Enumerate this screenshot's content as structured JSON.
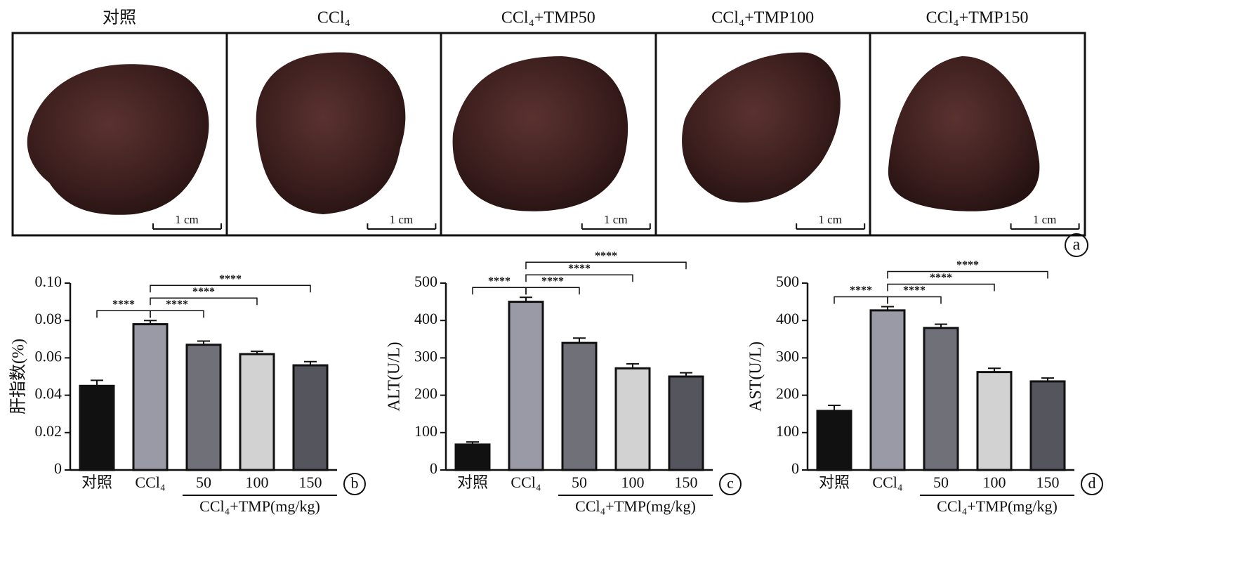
{
  "panel_a": {
    "titles": [
      "对照",
      "CCl₄",
      "CCl₄+TMP50",
      "CCl₄+TMP100",
      "CCl₄+TMP150"
    ],
    "scale_bars": [
      "1 cm",
      "1 cm",
      "1 cm",
      "1 cm",
      "1 cm"
    ],
    "label": "a"
  },
  "chart_data": [
    {
      "type": "bar",
      "panel_label": "b",
      "y_label": "肝指数(%)",
      "group_label": "CCl₄+TMP(mg/kg)",
      "categories": [
        "对照",
        "CCl₄",
        "50",
        "100",
        "150"
      ],
      "values": [
        0.045,
        0.078,
        0.067,
        0.062,
        0.056
      ],
      "errors": [
        0.003,
        0.002,
        0.002,
        0.0015,
        0.002
      ],
      "colors": [
        "#111111",
        "#9a9aa6",
        "#707079",
        "#d2d2d2",
        "#55555e"
      ],
      "ylim": [
        0,
        0.1
      ],
      "yticks": [
        0,
        0.02,
        0.04,
        0.06,
        0.08,
        {
          "value": 0.1,
          "label": "0.10"
        }
      ],
      "significance": [
        {
          "from": 0,
          "to": 1,
          "label": "****"
        },
        {
          "from": 1,
          "to": 2,
          "label": "****"
        },
        {
          "from": 1,
          "to": 3,
          "label": "****"
        },
        {
          "from": 1,
          "to": 4,
          "label": "****"
        }
      ]
    },
    {
      "type": "bar",
      "panel_label": "c",
      "y_label": "ALT(U/L)",
      "group_label": "CCl₄+TMP(mg/kg)",
      "categories": [
        "对照",
        "CCl₄",
        "50",
        "100",
        "150"
      ],
      "values": [
        68,
        450,
        340,
        272,
        250
      ],
      "errors": [
        7,
        12,
        13,
        12,
        10
      ],
      "colors": [
        "#111111",
        "#9a9aa6",
        "#707079",
        "#d2d2d2",
        "#55555e"
      ],
      "ylim": [
        0,
        500
      ],
      "yticks": [
        0,
        100,
        200,
        300,
        400,
        500
      ],
      "significance": [
        {
          "from": 0,
          "to": 1,
          "label": "****"
        },
        {
          "from": 1,
          "to": 2,
          "label": "****"
        },
        {
          "from": 1,
          "to": 3,
          "label": "****"
        },
        {
          "from": 1,
          "to": 4,
          "label": "****"
        }
      ]
    },
    {
      "type": "bar",
      "panel_label": "d",
      "y_label": "AST(U/L)",
      "group_label": "CCl₄+TMP(mg/kg)",
      "categories": [
        "对照",
        "CCl₄",
        "50",
        "100",
        "150"
      ],
      "values": [
        158,
        427,
        380,
        262,
        237
      ],
      "errors": [
        15,
        10,
        10,
        10,
        9
      ],
      "colors": [
        "#111111",
        "#9a9aa6",
        "#707079",
        "#d2d2d2",
        "#55555e"
      ],
      "ylim": [
        0,
        500
      ],
      "yticks": [
        0,
        100,
        200,
        300,
        400,
        500
      ],
      "significance": [
        {
          "from": 0,
          "to": 1,
          "label": "****"
        },
        {
          "from": 1,
          "to": 2,
          "label": "****"
        },
        {
          "from": 1,
          "to": 3,
          "label": "****"
        },
        {
          "from": 1,
          "to": 4,
          "label": "****"
        }
      ]
    }
  ]
}
